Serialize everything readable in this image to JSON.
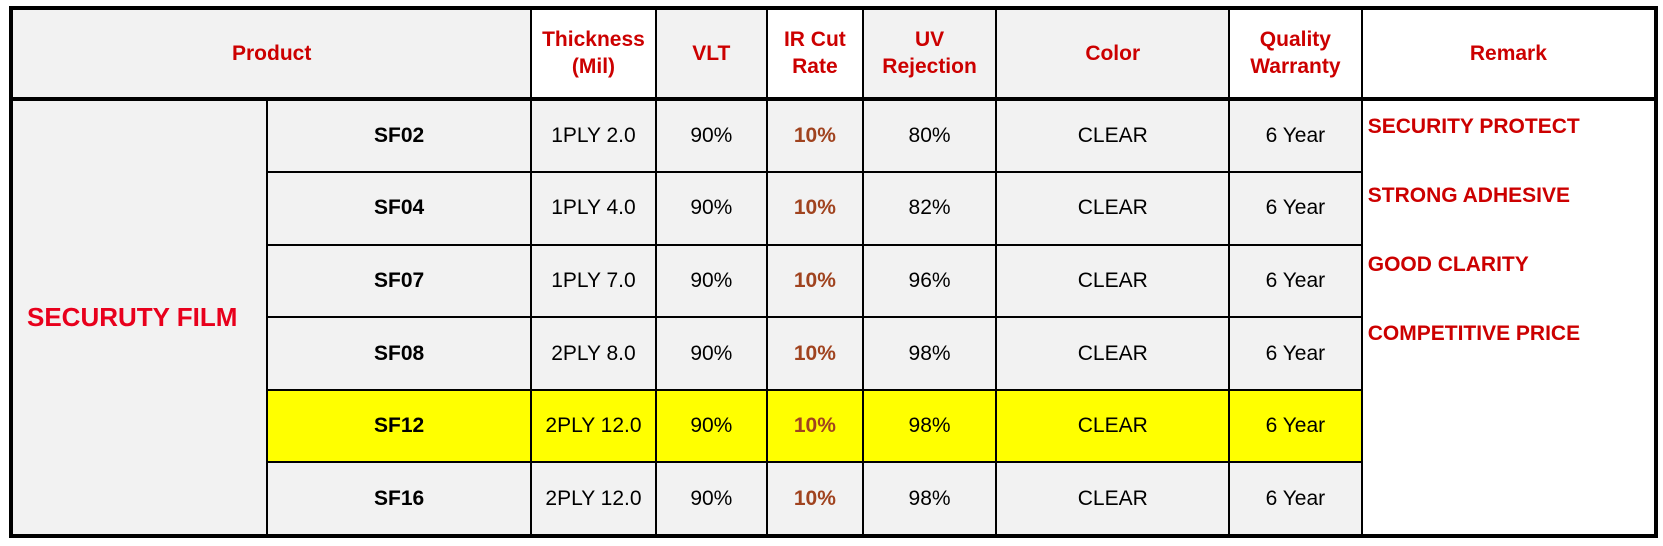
{
  "headers": {
    "product": "Product",
    "thickness": [
      "Thickness",
      "(Mil)"
    ],
    "vlt": "VLT",
    "ir_cut": [
      "IR Cut",
      "Rate"
    ],
    "uv": [
      "UV",
      "Rejection"
    ],
    "color": "Color",
    "warranty": [
      "Quality",
      "Warranty"
    ],
    "remark": "Remark"
  },
  "category": "SECURUTY FILM",
  "rows": [
    {
      "model": "SF02",
      "thickness": "1PLY 2.0",
      "vlt": "90%",
      "ir_cut": "10%",
      "uv": "80%",
      "color": "CLEAR",
      "warranty": "6 Year"
    },
    {
      "model": "SF04",
      "thickness": "1PLY 4.0",
      "vlt": "90%",
      "ir_cut": "10%",
      "uv": "82%",
      "color": "CLEAR",
      "warranty": "6 Year"
    },
    {
      "model": "SF07",
      "thickness": "1PLY 7.0",
      "vlt": "90%",
      "ir_cut": "10%",
      "uv": "96%",
      "color": "CLEAR",
      "warranty": "6 Year"
    },
    {
      "model": "SF08",
      "thickness": "2PLY 8.0",
      "vlt": "90%",
      "ir_cut": "10%",
      "uv": "98%",
      "color": "CLEAR",
      "warranty": "6 Year"
    },
    {
      "model": "SF12",
      "thickness": "2PLY 12.0",
      "vlt": "90%",
      "ir_cut": "10%",
      "uv": "98%",
      "color": "CLEAR",
      "warranty": "6 Year"
    },
    {
      "model": "SF16",
      "thickness": "2PLY 12.0",
      "vlt": "90%",
      "ir_cut": "10%",
      "uv": "98%",
      "color": "CLEAR",
      "warranty": "6 Year"
    }
  ],
  "remarks": [
    "SECURITY PROTECT",
    "STRONG ADHESIVE",
    "GOOD CLARITY",
    "COMPETITIVE PRICE"
  ],
  "colors": {
    "header_red": "#cc0000",
    "category_red": "#e8001c",
    "ir_cut_brown": "#a0431f",
    "highlight": "#ffff00",
    "cell_gray": "#f2f2f2"
  }
}
